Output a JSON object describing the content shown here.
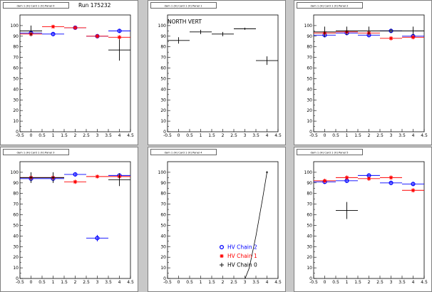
{
  "colors": {
    "chain0": "#000000",
    "chain1": "#ff0000",
    "chain2": "#0000ff",
    "background": "#c8c8c8",
    "panel": "#ffffff"
  },
  "chart_data": [
    {
      "type": "scatter",
      "panel_title": "dam 1 (H) Card 1 (V) Panel 0",
      "annotation": "Run 175232",
      "xlim": [
        -0.5,
        4.5
      ],
      "ylim": [
        0,
        110
      ],
      "xticks": [
        "-0.5",
        "0",
        "0.5",
        "1",
        "1.5",
        "2",
        "2.5",
        "3",
        "3.5",
        "4",
        "4.5"
      ],
      "yticks": [
        "0",
        "10",
        "20",
        "30",
        "40",
        "50",
        "60",
        "70",
        "80",
        "90",
        "100"
      ],
      "series": [
        {
          "key": "chain2",
          "marker": "circle",
          "points": [
            {
              "x": 0,
              "y": 93,
              "xerr": 0.5,
              "yerr": 2
            },
            {
              "x": 1,
              "y": 92,
              "xerr": 0.5,
              "yerr": 2
            },
            {
              "x": 2,
              "y": 98,
              "xerr": 0.5,
              "yerr": 1
            },
            {
              "x": 3,
              "y": 90,
              "xerr": 0.5,
              "yerr": 2
            },
            {
              "x": 4,
              "y": 95,
              "xerr": 0.5,
              "yerr": 2
            }
          ]
        },
        {
          "key": "chain1",
          "marker": "star",
          "points": [
            {
              "x": 0,
              "y": 92,
              "xerr": 0.5,
              "yerr": 2
            },
            {
              "x": 1,
              "y": 99,
              "xerr": 0.5,
              "yerr": 1
            },
            {
              "x": 2,
              "y": 98,
              "xerr": 0.5,
              "yerr": 1
            },
            {
              "x": 3,
              "y": 90,
              "xerr": 0.5,
              "yerr": 2
            },
            {
              "x": 4,
              "y": 89,
              "xerr": 0.5,
              "yerr": 2
            }
          ]
        },
        {
          "key": "chain0",
          "marker": "cross",
          "points": [
            {
              "x": 0,
              "y": 95,
              "xerr": 0.5,
              "yerr": 5
            },
            {
              "x": 4,
              "y": 77,
              "xerr": 0.5,
              "yerr": 10
            }
          ]
        }
      ]
    },
    {
      "type": "scatter",
      "panel_title": "dam 1 (H) Card 1 (V) Panel 1",
      "annotation": "NORTH VERT",
      "xlim": [
        -0.5,
        4.5
      ],
      "ylim": [
        0,
        110
      ],
      "xticks": [
        "-0.5",
        "0",
        "0.5",
        "1",
        "1.5",
        "2",
        "2.5",
        "3",
        "3.5",
        "4",
        "4.5"
      ],
      "yticks": [
        "0",
        "10",
        "20",
        "30",
        "40",
        "50",
        "60",
        "70",
        "80",
        "90",
        "100"
      ],
      "series": [
        {
          "key": "chain0",
          "marker": "cross",
          "points": [
            {
              "x": 0,
              "y": 86,
              "xerr": 0.5,
              "yerr": 3
            },
            {
              "x": 1,
              "y": 94,
              "xerr": 0.5,
              "yerr": 2
            },
            {
              "x": 2,
              "y": 92,
              "xerr": 0.5,
              "yerr": 2
            },
            {
              "x": 3,
              "y": 97,
              "xerr": 0.5,
              "yerr": 1
            },
            {
              "x": 4,
              "y": 67,
              "xerr": 0.5,
              "yerr": 4
            }
          ]
        }
      ]
    },
    {
      "type": "scatter",
      "panel_title": "dam 1 (H) Card 1 (V) Panel 2",
      "annotation": "",
      "xlim": [
        -0.5,
        4.5
      ],
      "ylim": [
        0,
        110
      ],
      "xticks": [
        "-0.5",
        "0",
        "0.5",
        "1",
        "1.5",
        "2",
        "2.5",
        "3",
        "3.5",
        "4",
        "4.5"
      ],
      "yticks": [
        "0",
        "10",
        "20",
        "30",
        "40",
        "50",
        "60",
        "70",
        "80",
        "90",
        "100"
      ],
      "series": [
        {
          "key": "chain2",
          "marker": "circle",
          "points": [
            {
              "x": 0,
              "y": 91,
              "xerr": 0.5,
              "yerr": 2
            },
            {
              "x": 1,
              "y": 93,
              "xerr": 0.5,
              "yerr": 2
            },
            {
              "x": 2,
              "y": 91,
              "xerr": 0.5,
              "yerr": 2
            },
            {
              "x": 3,
              "y": 95,
              "xerr": 0.5,
              "yerr": 2
            },
            {
              "x": 4,
              "y": 90,
              "xerr": 0.5,
              "yerr": 2
            }
          ]
        },
        {
          "key": "chain1",
          "marker": "star",
          "points": [
            {
              "x": 0,
              "y": 93,
              "xerr": 0.5,
              "yerr": 2
            },
            {
              "x": 1,
              "y": 94,
              "xerr": 0.5,
              "yerr": 2
            },
            {
              "x": 2,
              "y": 93,
              "xerr": 0.5,
              "yerr": 2
            },
            {
              "x": 3,
              "y": 88,
              "xerr": 0.5,
              "yerr": 2
            },
            {
              "x": 4,
              "y": 89,
              "xerr": 0.5,
              "yerr": 2
            }
          ]
        },
        {
          "key": "chain0",
          "marker": "cross",
          "points": [
            {
              "x": 0,
              "y": 94,
              "xerr": 0.5,
              "yerr": 5
            },
            {
              "x": 1,
              "y": 95,
              "xerr": 0.5,
              "yerr": 4
            },
            {
              "x": 2,
              "y": 95,
              "xerr": 0.5,
              "yerr": 4
            },
            {
              "x": 3,
              "y": 95,
              "xerr": 0.5,
              "yerr": 2
            },
            {
              "x": 4,
              "y": 95,
              "xerr": 0.5,
              "yerr": 4
            }
          ]
        }
      ]
    },
    {
      "type": "scatter",
      "panel_title": "dam 1 (H) Card 1 (V) Panel 3",
      "annotation": "",
      "xlim": [
        -0.5,
        4.5
      ],
      "ylim": [
        0,
        110
      ],
      "xticks": [
        "-0.5",
        "0",
        "0.5",
        "1",
        "1.5",
        "2",
        "2.5",
        "3",
        "3.5",
        "4",
        "4.5"
      ],
      "yticks": [
        "0",
        "10",
        "20",
        "30",
        "40",
        "50",
        "60",
        "70",
        "80",
        "90",
        "100"
      ],
      "series": [
        {
          "key": "chain2",
          "marker": "circle",
          "points": [
            {
              "x": 0,
              "y": 94,
              "xerr": 0.5,
              "yerr": 3
            },
            {
              "x": 1,
              "y": 94,
              "xerr": 0.5,
              "yerr": 3
            },
            {
              "x": 2,
              "y": 98,
              "xerr": 0.5,
              "yerr": 2
            },
            {
              "x": 3,
              "y": 38,
              "xerr": 0.5,
              "yerr": 3
            },
            {
              "x": 4,
              "y": 97,
              "xerr": 0.5,
              "yerr": 2
            }
          ]
        },
        {
          "key": "chain1",
          "marker": "star",
          "points": [
            {
              "x": 0,
              "y": 95,
              "xerr": 0.5,
              "yerr": 2
            },
            {
              "x": 1,
              "y": 95,
              "xerr": 0.5,
              "yerr": 2
            },
            {
              "x": 2,
              "y": 91,
              "xerr": 0.5,
              "yerr": 2
            },
            {
              "x": 3,
              "y": 96,
              "xerr": 0.5,
              "yerr": 1
            },
            {
              "x": 4,
              "y": 96,
              "xerr": 0.5,
              "yerr": 1
            }
          ]
        },
        {
          "key": "chain0",
          "marker": "cross",
          "points": [
            {
              "x": 0,
              "y": 95,
              "xerr": 0.5,
              "yerr": 5
            },
            {
              "x": 1,
              "y": 95,
              "xerr": 0.5,
              "yerr": 5
            },
            {
              "x": 4,
              "y": 93,
              "xerr": 0.5,
              "yerr": 6
            }
          ]
        }
      ]
    },
    {
      "type": "line",
      "panel_title": "dam 1 (H) Card 1 (V) Panel 4",
      "annotation": "",
      "xlim": [
        -0.5,
        4.5
      ],
      "ylim": [
        0,
        110
      ],
      "xticks": [
        "-0.5",
        "0",
        "0.5",
        "1",
        "1.5",
        "2",
        "2.5",
        "3",
        "3.5",
        "4",
        "4.5"
      ],
      "yticks": [
        "0",
        "10",
        "20",
        "30",
        "40",
        "50",
        "60",
        "70",
        "80",
        "90",
        "100"
      ],
      "curve": [
        {
          "x": 2.3,
          "y": -2
        },
        {
          "x": 2.6,
          "y": -8
        },
        {
          "x": 2.9,
          "y": -6
        },
        {
          "x": 3.2,
          "y": 10
        },
        {
          "x": 3.5,
          "y": 40
        },
        {
          "x": 3.8,
          "y": 75
        },
        {
          "x": 4,
          "y": 100
        }
      ],
      "series": [
        {
          "key": "chain0",
          "marker": "cross",
          "points": [
            {
              "x": 4,
              "y": 100,
              "xerr": 0.05,
              "yerr": 1
            }
          ]
        }
      ],
      "legend": [
        {
          "key": "chain2",
          "marker": "circle",
          "label": "HV Chain 2"
        },
        {
          "key": "chain1",
          "marker": "star",
          "label": "HV Chain 1"
        },
        {
          "key": "chain0",
          "marker": "cross",
          "label": "HV Chain 0"
        }
      ]
    },
    {
      "type": "scatter",
      "panel_title": "dam 1 (H) Card 1 (V) Panel 5",
      "annotation": "",
      "xlim": [
        -0.5,
        4.5
      ],
      "ylim": [
        0,
        110
      ],
      "xticks": [
        "-0.5",
        "0",
        "0.5",
        "1",
        "1.5",
        "2",
        "2.5",
        "3",
        "3.5",
        "4",
        "4.5"
      ],
      "yticks": [
        "0",
        "10",
        "20",
        "30",
        "40",
        "50",
        "60",
        "70",
        "80",
        "90",
        "100"
      ],
      "series": [
        {
          "key": "chain2",
          "marker": "circle",
          "points": [
            {
              "x": 0,
              "y": 91,
              "xerr": 0.5,
              "yerr": 2
            },
            {
              "x": 1,
              "y": 92,
              "xerr": 0.5,
              "yerr": 2
            },
            {
              "x": 2,
              "y": 97,
              "xerr": 0.5,
              "yerr": 2
            },
            {
              "x": 3,
              "y": 90,
              "xerr": 0.5,
              "yerr": 2
            },
            {
              "x": 4,
              "y": 89,
              "xerr": 0.5,
              "yerr": 2
            }
          ]
        },
        {
          "key": "chain1",
          "marker": "star",
          "points": [
            {
              "x": 0,
              "y": 92,
              "xerr": 0.5,
              "yerr": 2
            },
            {
              "x": 1,
              "y": 95,
              "xerr": 0.5,
              "yerr": 2
            },
            {
              "x": 2,
              "y": 94,
              "xerr": 0.5,
              "yerr": 2
            },
            {
              "x": 3,
              "y": 95,
              "xerr": 0.5,
              "yerr": 2
            },
            {
              "x": 4,
              "y": 83,
              "xerr": 0.5,
              "yerr": 2
            }
          ]
        },
        {
          "key": "chain0",
          "marker": "cross",
          "points": [
            {
              "x": 1,
              "y": 64,
              "xerr": 0.5,
              "yerr": 8
            }
          ]
        }
      ]
    }
  ]
}
